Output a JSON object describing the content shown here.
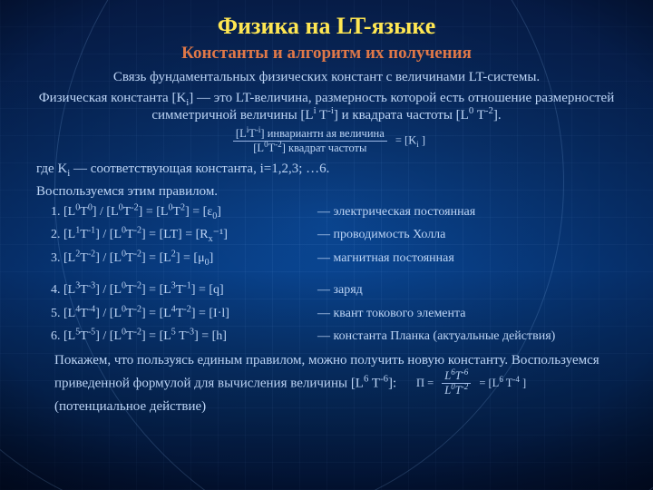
{
  "colors": {
    "title": "#ffe752",
    "subtitle": "#e07848",
    "body": "#9db9e8"
  },
  "fonts": {
    "title_size": 26,
    "subtitle_size": 19,
    "body_size": 14,
    "list_size": 14
  },
  "title": "Физика на LT-языке",
  "subtitle": "Константы и алгоритм их получения",
  "intro1": "Связь фундаментальных физических констант с величинами LT-системы.",
  "intro2_a": "Физическая константа [K",
  "intro2_b": "] — это LT-величина, размерность которой есть отношение размерностей симметричной величины [L",
  "intro2_c": " T",
  "intro2_d": "] и квадрата частоты [L",
  "intro2_e": " T",
  "intro2_f": "].",
  "formula_top_a": "[L",
  "formula_top_b": "T",
  "formula_top_c": "]",
  "formula_top_label": "  инвариантн ая  величина",
  "formula_bot_a": "[L",
  "formula_bot_b": "T",
  "formula_bot_c": "]",
  "formula_bot_label": "  квадрат   частоты",
  "formula_eq": " = [K",
  "formula_eq2": " ]",
  "where": "где K",
  "where2": " — соответствующая константа, i=1,2,3; …6.",
  "userule": "Воспользуемся этим правилом.",
  "items": [
    {
      "lhs_a": "[L",
      "p1": "0",
      "lhs_b": "T",
      "p2": "0",
      "lhs_c": "] / [L",
      "p3": "0",
      "lhs_d": "T",
      "p4": "-2",
      "lhs_e": "] = [L",
      "p5": "0",
      "lhs_f": "T",
      "p6": "2",
      "lhs_g": "] = [ε",
      "sub": "0",
      "lhs_h": "]",
      "rhs": "— электрическая постоянная"
    },
    {
      "lhs_a": "[L",
      "p1": "1",
      "lhs_b": "T",
      "p2": "-1",
      "lhs_c": "] / [L",
      "p3": "0",
      "lhs_d": "T",
      "p4": "-2",
      "lhs_e": "] = [LT] = [R",
      "sub": "x",
      "p5": "",
      "lhs_f": "",
      "p6": "",
      "lhs_g": "",
      "lhs_h": "⁻¹]",
      "rhs": "— проводимость Холла"
    },
    {
      "lhs_a": "[L",
      "p1": "2",
      "lhs_b": "T",
      "p2": "-2",
      "lhs_c": "] / [L",
      "p3": "0",
      "lhs_d": "T",
      "p4": "-2",
      "lhs_e": "] = [L",
      "p5": "2",
      "lhs_f": "",
      "p6": "",
      "lhs_g": "] = [μ",
      "sub": "0",
      "lhs_h": "]",
      "rhs": "— магнитная постоянная"
    },
    {
      "lhs_a": "[L",
      "p1": "3",
      "lhs_b": "T",
      "p2": "-3",
      "lhs_c": "] / [L",
      "p3": "0",
      "lhs_d": "T",
      "p4": "-2",
      "lhs_e": "] = [L",
      "p5": "3",
      "lhs_f": "T",
      "p6": "-1",
      "lhs_g": "] = [q",
      "sub": "",
      "lhs_h": "]",
      "rhs": "— заряд"
    },
    {
      "lhs_a": "[L",
      "p1": "4",
      "lhs_b": "T",
      "p2": "-4",
      "lhs_c": "] / [L",
      "p3": "0",
      "lhs_d": "T",
      "p4": "-2",
      "lhs_e": "] = [L",
      "p5": "4",
      "lhs_f": "T",
      "p6": "-2",
      "lhs_g": "] = [I·l",
      "sub": "",
      "lhs_h": "]",
      "rhs": "— квант токового элемента"
    },
    {
      "lhs_a": "[L",
      "p1": "5",
      "lhs_b": "T",
      "p2": "-5",
      "lhs_c": "] / [L",
      "p3": "0",
      "lhs_d": "T",
      "p4": "-2",
      "lhs_e": "] = [L",
      "p5": "5",
      "lhs_f": " T",
      "p6": "-3",
      "lhs_g": "] = [h",
      "sub": "",
      "lhs_h": "]",
      "rhs": "— константа Планка  (актуальные действия)"
    }
  ],
  "conclusion_a": "Покажем, что пользуясь единым правилом, можно получить новую константу. Воспользуемся приведенной формулой для вычисления величины [L",
  "conclusion_b": " T",
  "conclusion_c": "]:",
  "f2_pre": "П = ",
  "f2_top_a": "L",
  "f2_top_b": "T",
  "f2_bot_a": "L",
  "f2_bot_b": "T",
  "f2_mid": " = [L",
  "f2_mid2": " T",
  "f2_mid3": " ]",
  "f2_tail": "   (потенциальное действие)",
  "exp": {
    "i": "i",
    "mi": "-i",
    "zero": "0",
    "m2": "-2",
    "six": "6",
    "m6": "-6",
    "m4": "-4"
  }
}
